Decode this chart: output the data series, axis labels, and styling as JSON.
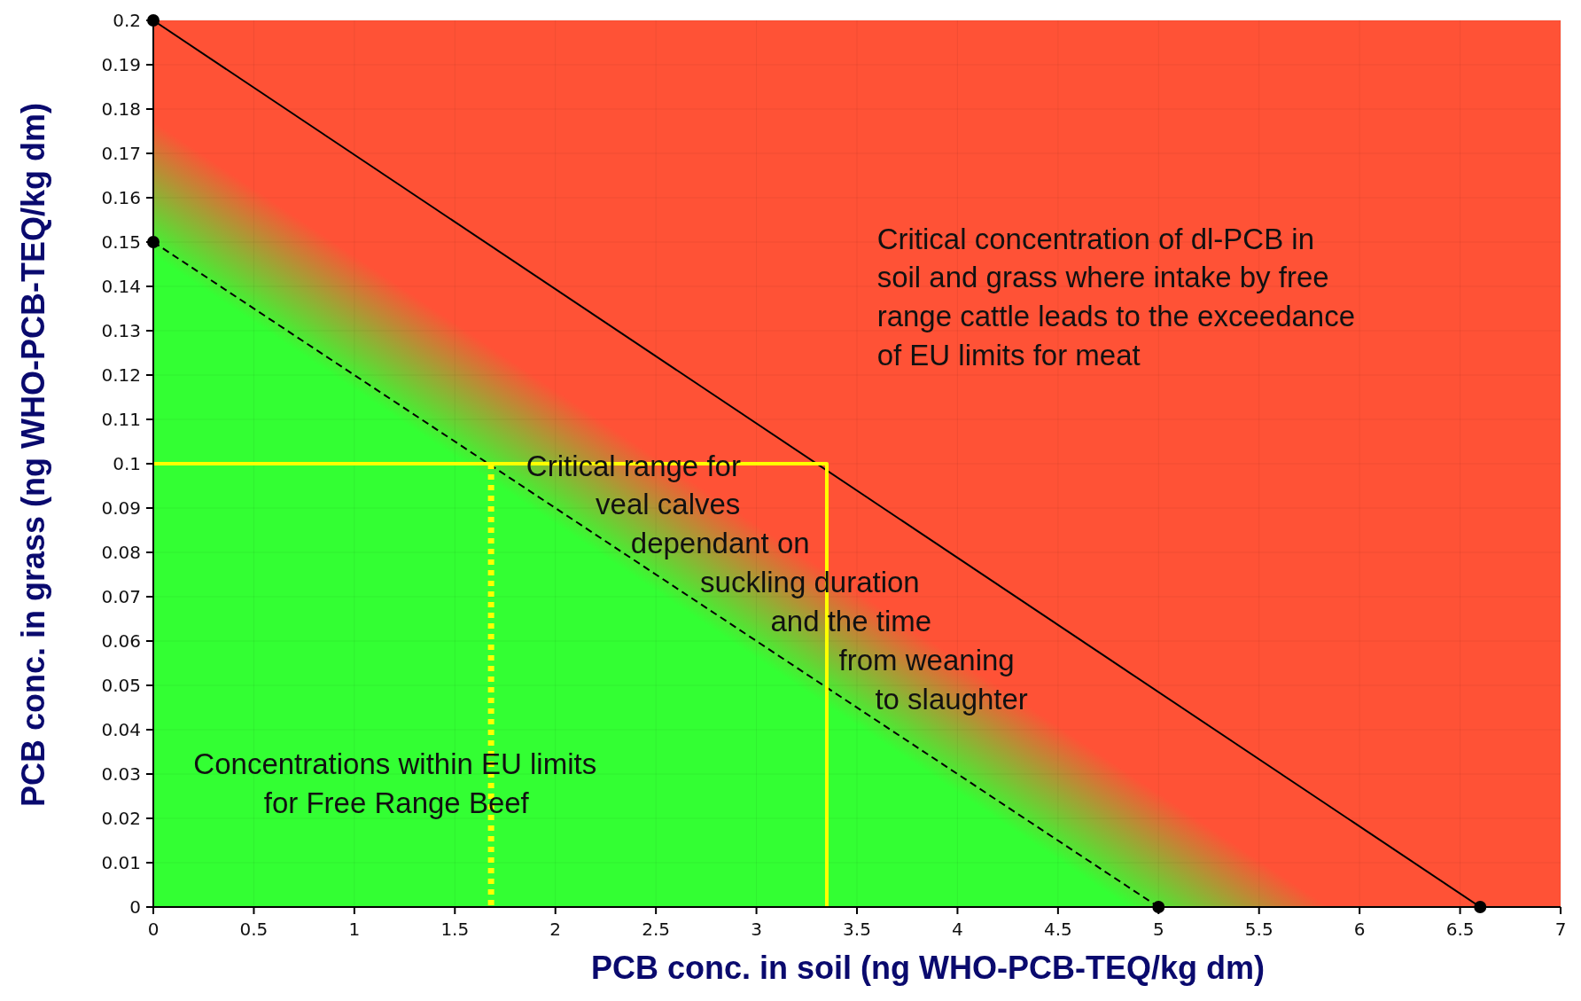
{
  "chart_data": {
    "type": "line",
    "xlabel": "PCB conc. in soil (ng WHO-PCB-TEQ/kg dm)",
    "ylabel": "PCB conc. in grass (ng WHO-PCB-TEQ/kg dm)",
    "xlim": [
      0,
      7
    ],
    "xticks": [
      0,
      0.5,
      1,
      1.5,
      2,
      2.5,
      3,
      3.5,
      4,
      4.5,
      5,
      5.5,
      6,
      6.5,
      7
    ],
    "ylim": [
      0,
      0.2
    ],
    "yticks": [
      0,
      0.01,
      0.02,
      0.03,
      0.04,
      0.05,
      0.06,
      0.07,
      0.08,
      0.09,
      0.1,
      0.11,
      0.12,
      0.13,
      0.14,
      0.15,
      0.16,
      0.17,
      0.18,
      0.19,
      0.2
    ],
    "grid": true,
    "series": [
      {
        "color": "#000000",
        "x": [
          0,
          6.6
        ],
        "values": [
          0.2,
          0
        ],
        "marker": "circle",
        "line_style": "solid"
      },
      {
        "color": "#000000",
        "x": [
          0,
          5
        ],
        "values": [
          0.15,
          0
        ],
        "marker": "circle",
        "line_style": "dashed"
      },
      {
        "color": "#ffff00",
        "x": [
          0,
          3.35,
          3.35
        ],
        "values": [
          0.1,
          0.1,
          0
        ],
        "marker": "none",
        "line_style": "solid"
      },
      {
        "color": "#ffff00",
        "x": [
          1.68,
          1.68
        ],
        "values": [
          0.1,
          0
        ],
        "marker": "none",
        "line_style": "dotted"
      }
    ],
    "annotations": [
      "Critical concentration of dl-PCB in\nsoil and grass where intake by free\nrange cattle leads to the exceedance\nof EU limits for meat",
      "Critical range for\nveal calves\ndependant on\nsuckling duration\nand the time\nfrom weaning\nto slaughter",
      "Concentrations within EU limits\nfor Free Range Beef"
    ]
  }
}
